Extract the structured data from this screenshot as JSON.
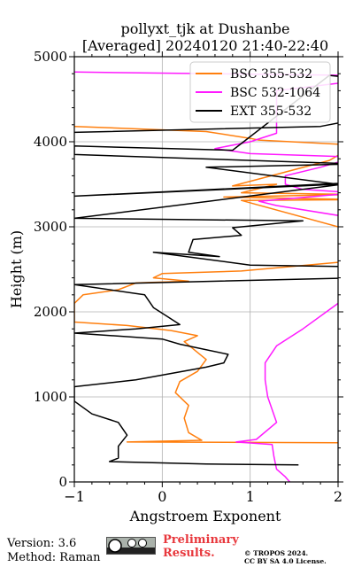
{
  "chart_data": {
    "type": "line",
    "title": "pollyxt_tjk at Dushanbe",
    "subtitle": "[Averaged] 20240120 21:40-22:40",
    "xlabel": "Angstroem Exponent",
    "ylabel": "Height (m)",
    "xlim": [
      -1,
      2
    ],
    "ylim": [
      0,
      5000
    ],
    "xticks": [
      -1,
      0,
      1,
      2
    ],
    "yticks": [
      0,
      1000,
      2000,
      3000,
      4000,
      5000
    ],
    "grid": true,
    "legend_position": "top-right",
    "series": [
      {
        "name": "BSC 355-532",
        "color": "#ff7f0e",
        "points": [
          [
            -1.0,
            4180
          ],
          [
            0.5,
            4120
          ],
          [
            1.0,
            4040
          ],
          [
            1.1,
            4020
          ],
          [
            2.2,
            3960
          ],
          [
            1.9,
            3780
          ],
          [
            0.8,
            3480
          ],
          [
            1.3,
            3500
          ],
          [
            0.9,
            3400
          ],
          [
            2.2,
            3380
          ],
          [
            0.7,
            3350
          ],
          [
            2.2,
            3320
          ],
          [
            0.9,
            3310
          ],
          [
            2.0,
            3000
          ],
          [
            2.2,
            2600
          ],
          [
            0.9,
            2480
          ],
          [
            0.0,
            2450
          ],
          [
            -0.1,
            2400
          ],
          [
            0.3,
            2360
          ],
          [
            -0.3,
            2340
          ],
          [
            -0.5,
            2260
          ],
          [
            -0.9,
            2200
          ],
          [
            -1.0,
            2100
          ],
          [
            -1.0,
            1880
          ],
          [
            -0.4,
            1840
          ],
          [
            0.1,
            1780
          ],
          [
            0.4,
            1720
          ],
          [
            0.25,
            1650
          ],
          [
            0.5,
            1440
          ],
          [
            0.4,
            1300
          ],
          [
            0.2,
            1180
          ],
          [
            0.15,
            1050
          ],
          [
            0.3,
            900
          ],
          [
            0.25,
            750
          ],
          [
            0.3,
            580
          ],
          [
            0.45,
            490
          ],
          [
            -0.4,
            470
          ],
          [
            2.2,
            460
          ],
          [
            2.2,
            440
          ]
        ]
      },
      {
        "name": "BSC 532-1064",
        "color": "#ff1aff",
        "points": [
          [
            -1.0,
            4820
          ],
          [
            2.2,
            4780
          ],
          [
            2.1,
            4700
          ],
          [
            1.3,
            4600
          ],
          [
            1.3,
            4300
          ],
          [
            1.3,
            4100
          ],
          [
            1.0,
            4000
          ],
          [
            0.6,
            3920
          ],
          [
            1.0,
            3860
          ],
          [
            2.2,
            3820
          ],
          [
            1.8,
            3700
          ],
          [
            1.4,
            3600
          ],
          [
            1.4,
            3500
          ],
          [
            1.6,
            3440
          ],
          [
            2.2,
            3400
          ],
          [
            1.1,
            3300
          ],
          [
            1.3,
            3250
          ],
          [
            2.2,
            3100
          ],
          [
            2.2,
            2200
          ],
          [
            2.0,
            2100
          ],
          [
            1.6,
            1800
          ],
          [
            1.3,
            1600
          ],
          [
            1.17,
            1400
          ],
          [
            1.17,
            1200
          ],
          [
            1.2,
            1000
          ],
          [
            1.3,
            700
          ],
          [
            1.07,
            500
          ],
          [
            0.84,
            470
          ],
          [
            1.25,
            440
          ],
          [
            1.27,
            300
          ],
          [
            1.3,
            150
          ],
          [
            1.4,
            60
          ],
          [
            1.45,
            0
          ]
        ]
      },
      {
        "name": "EXT 355-532",
        "color": "#000000",
        "points": [
          [
            -1.0,
            4110
          ],
          [
            1.8,
            4180
          ],
          [
            2.2,
            4260
          ],
          [
            2.2,
            4500
          ],
          [
            2.2,
            4750
          ],
          [
            1.9,
            4780
          ],
          [
            0.8,
            3900
          ],
          [
            -1.0,
            3950
          ],
          [
            -1.0,
            3850
          ],
          [
            2.2,
            3740
          ],
          [
            0.5,
            3700
          ],
          [
            2.0,
            3500
          ],
          [
            -1.0,
            3360
          ],
          [
            2.2,
            3520
          ],
          [
            -1.0,
            3100
          ],
          [
            1.6,
            3070
          ],
          [
            0.8,
            2990
          ],
          [
            0.9,
            2900
          ],
          [
            0.35,
            2850
          ],
          [
            0.3,
            2700
          ],
          [
            0.65,
            2650
          ],
          [
            -0.1,
            2700
          ],
          [
            1.0,
            2550
          ],
          [
            2.2,
            2530
          ],
          [
            2.2,
            2400
          ],
          [
            -1.0,
            2320
          ],
          [
            -0.2,
            2200
          ],
          [
            -0.1,
            2050
          ],
          [
            0.05,
            1950
          ],
          [
            0.2,
            1850
          ],
          [
            -0.3,
            1800
          ],
          [
            -1.0,
            1750
          ],
          [
            0.0,
            1680
          ],
          [
            0.2,
            1620
          ],
          [
            0.75,
            1500
          ],
          [
            0.7,
            1400
          ],
          [
            0.5,
            1350
          ],
          [
            -0.3,
            1200
          ],
          [
            -1.0,
            1120
          ],
          [
            -1.0,
            950
          ],
          [
            -0.8,
            800
          ],
          [
            -0.5,
            700
          ],
          [
            -0.4,
            550
          ],
          [
            -0.5,
            420
          ],
          [
            -0.5,
            280
          ],
          [
            -0.6,
            240
          ],
          [
            0.5,
            210
          ],
          [
            1.55,
            200
          ]
        ]
      }
    ]
  },
  "footer": {
    "version": "Version: 3.6",
    "method": "Method: Raman",
    "preliminary_line1": "Preliminary",
    "preliminary_line2": "Results.",
    "copyright_line1": "© TROPOS 2024.",
    "copyright_line2": "CC BY SA 4.0 License."
  }
}
